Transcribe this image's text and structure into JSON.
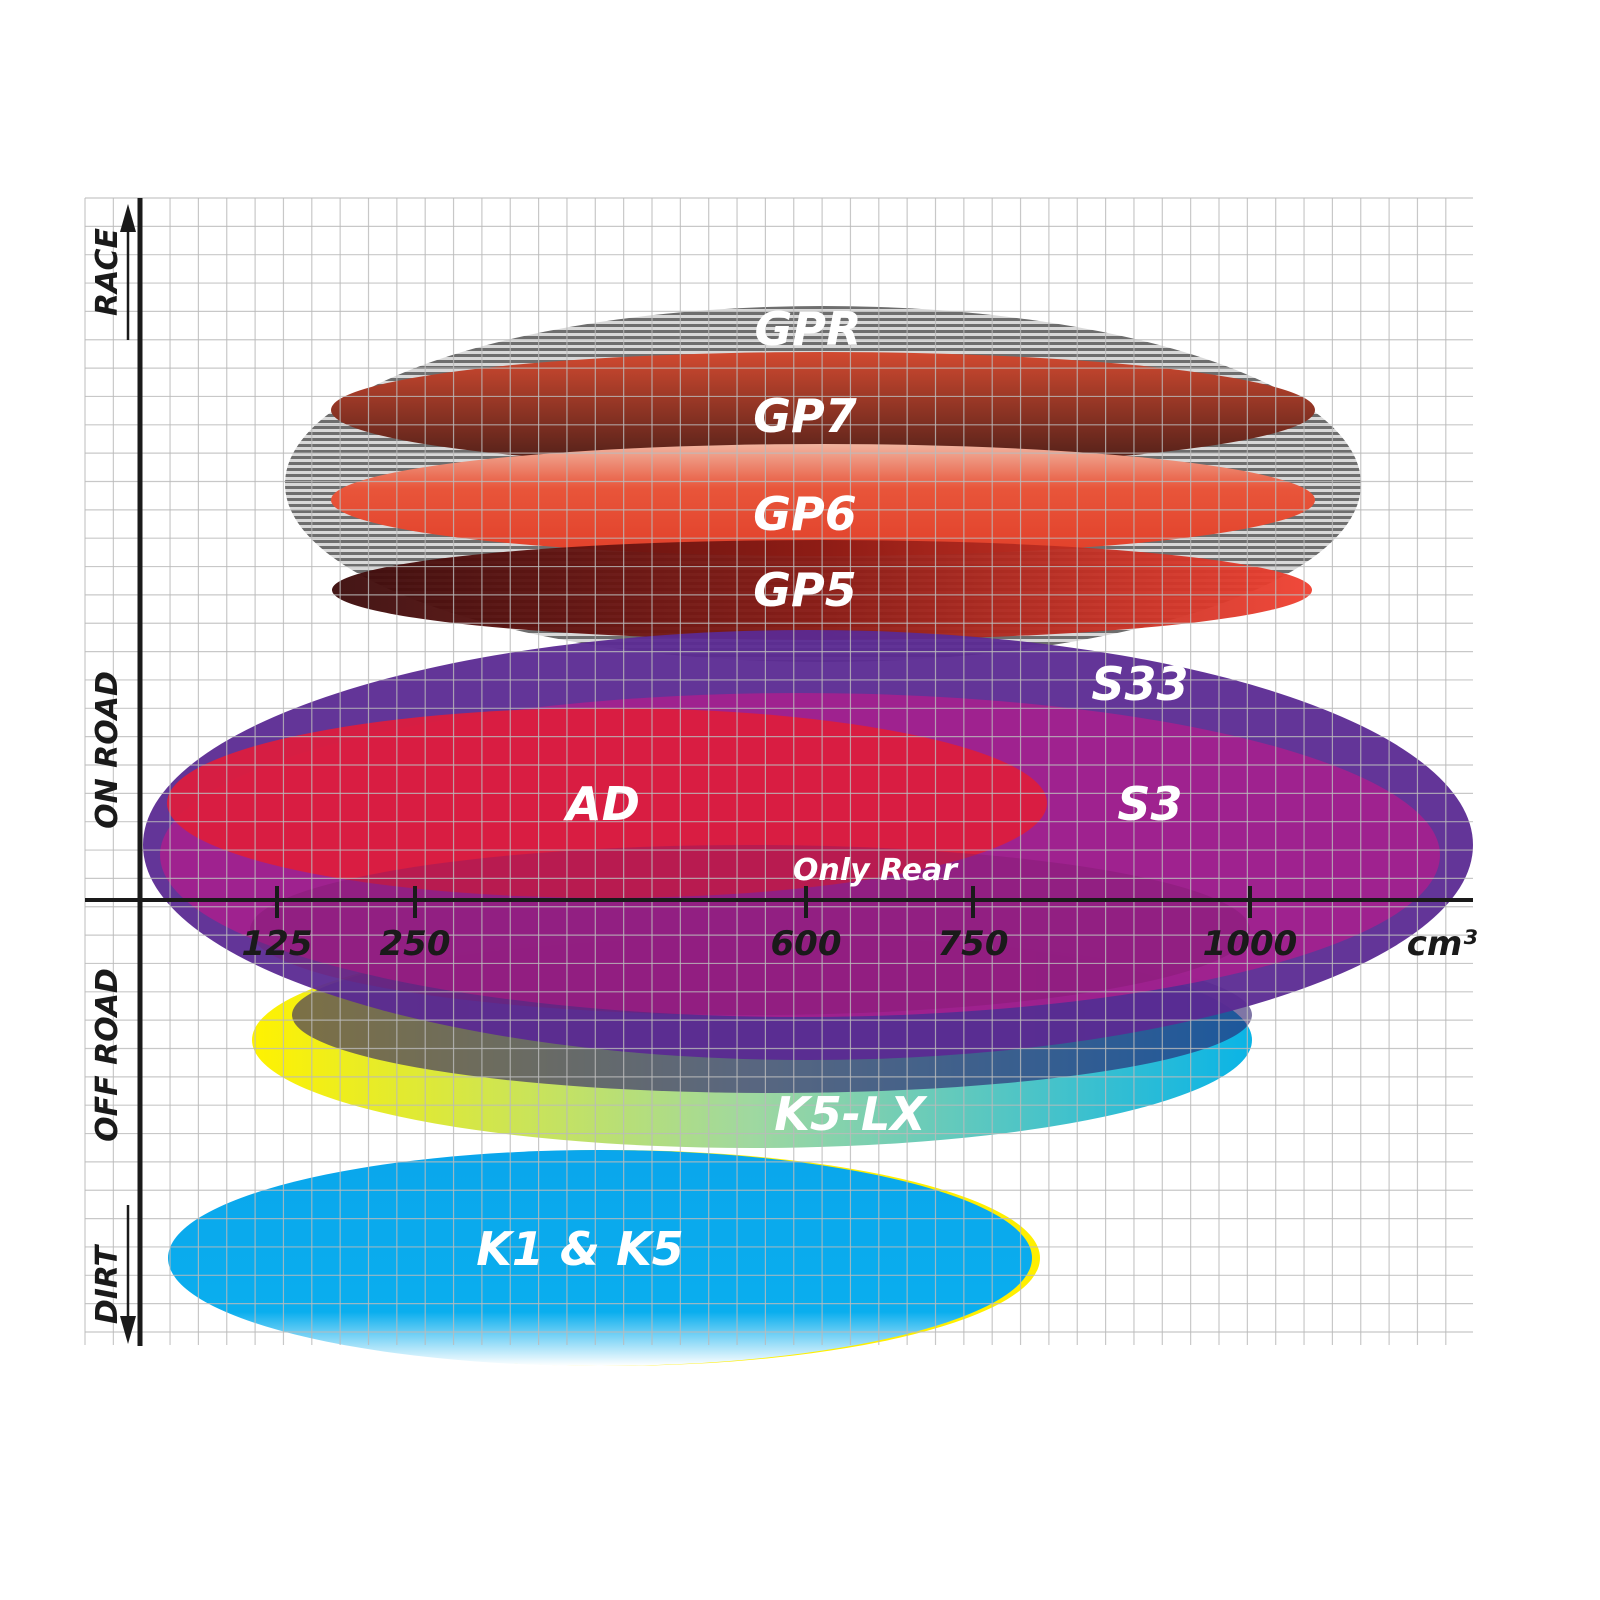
{
  "chart_data": {
    "type": "area-map",
    "xlabel": "cm³",
    "x_ticks": [
      "125",
      "250",
      "600",
      "750",
      "1000"
    ],
    "y_categories": [
      "RACE",
      "ON ROAD",
      "OFF ROAD",
      "DIRT"
    ],
    "grid": true,
    "zones": [
      {
        "name": "GPR",
        "color": "#9a9a9a"
      },
      {
        "name": "GP7",
        "color": "#8a3a2a"
      },
      {
        "name": "GP6",
        "color": "#e4462e"
      },
      {
        "name": "GP5",
        "color": "#c0281e"
      },
      {
        "name": "S33",
        "color": "#5b2a92"
      },
      {
        "name": "S3",
        "color": "#a5208e"
      },
      {
        "name": "AD",
        "color": "#dc1e3e"
      },
      {
        "name": "K5-LX",
        "color": "#3fc2cf"
      },
      {
        "name": "K1 & K5",
        "color": "#0aaeee"
      }
    ],
    "annotations": [
      "Only Rear"
    ]
  }
}
